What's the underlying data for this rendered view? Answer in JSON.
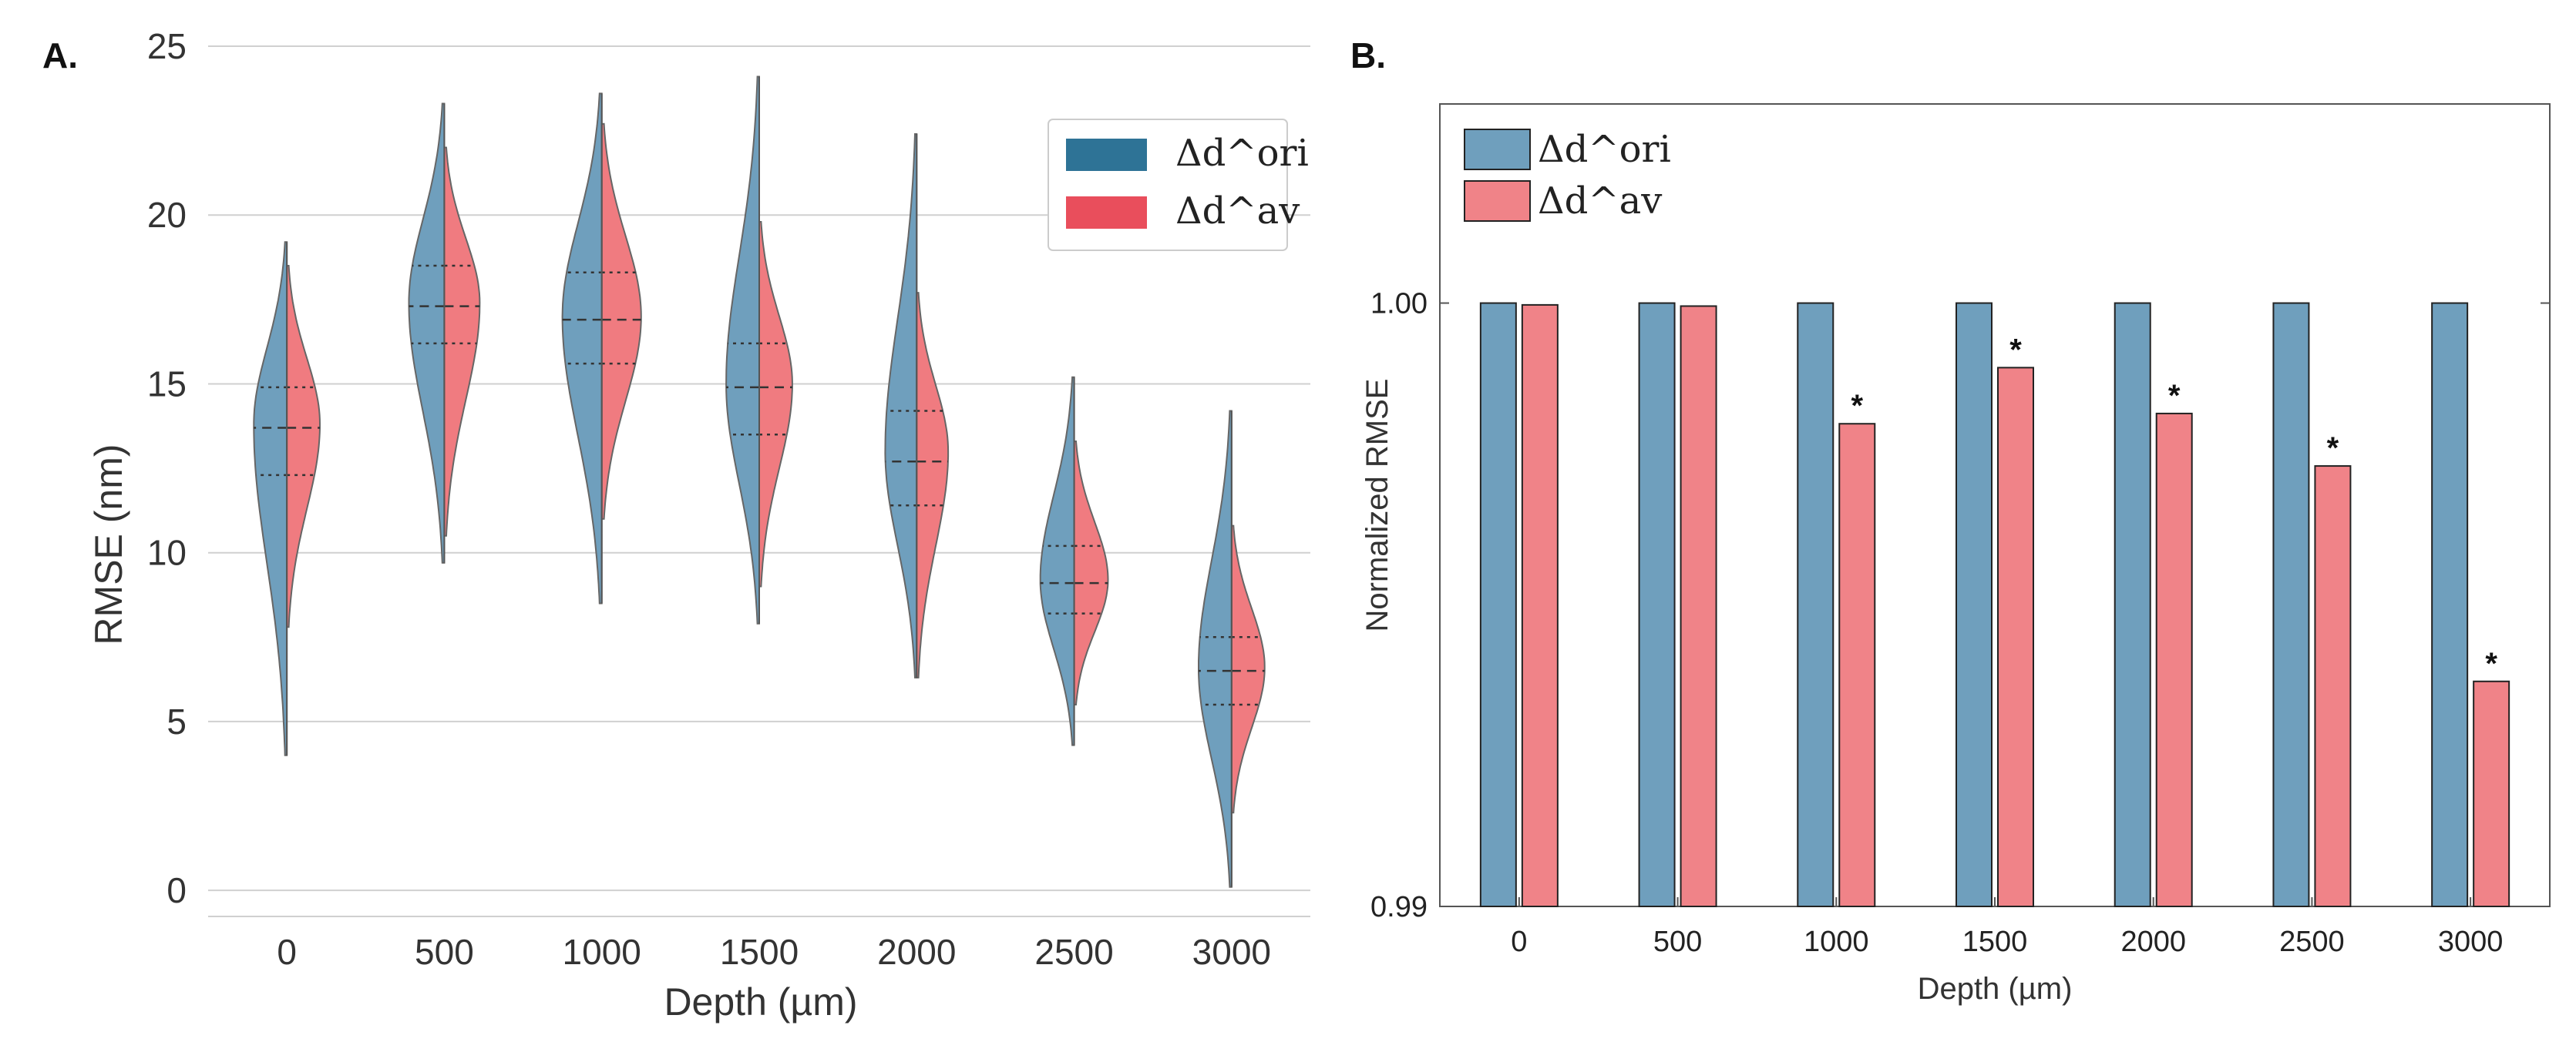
{
  "panels": {
    "a_label": "A.",
    "b_label": "B."
  },
  "chart_data": [
    {
      "type": "violin",
      "panel": "A.",
      "xlabel": "Depth (µm)",
      "ylabel": "RMSE (nm)",
      "categories": [
        "0",
        "500",
        "1000",
        "1500",
        "2000",
        "2500",
        "3000"
      ],
      "ylim": [
        -1,
        25
      ],
      "yticks": [
        "0",
        "5",
        "10",
        "15",
        "20",
        "25"
      ],
      "grid": "horizontal",
      "legend_position": "top-right",
      "legend": [
        "Δd^ori",
        "Δd^av"
      ],
      "colors": {
        "ori": "#6f9fbd",
        "av": "#f07b80",
        "legend_ori": "#2e7396",
        "legend_av": "#e94e5c"
      },
      "series": [
        {
          "name": "Δd^ori",
          "min": [
            4.0,
            9.7,
            8.5,
            7.9,
            6.3,
            4.3,
            0.1
          ],
          "max": [
            19.2,
            23.3,
            23.6,
            24.1,
            22.4,
            15.2,
            14.2
          ],
          "q1": [
            12.3,
            16.2,
            15.6,
            13.5,
            11.4,
            8.2,
            5.5
          ],
          "median": [
            13.7,
            17.3,
            16.9,
            14.9,
            12.7,
            9.1,
            6.5
          ],
          "q3": [
            14.9,
            18.5,
            18.3,
            16.2,
            14.2,
            10.2,
            7.5
          ],
          "mode": [
            13.8,
            17.4,
            17.0,
            15.0,
            13.0,
            9.2,
            6.6
          ],
          "width": [
            0.42,
            0.45,
            0.5,
            0.42,
            0.4,
            0.43,
            0.42
          ]
        },
        {
          "name": "Δd^av",
          "min": [
            7.8,
            10.5,
            11.0,
            9.0,
            6.3,
            5.5,
            2.3
          ],
          "max": [
            18.5,
            22.0,
            22.7,
            19.8,
            17.7,
            13.3,
            10.8
          ],
          "q1": [
            12.3,
            16.2,
            15.6,
            13.5,
            11.4,
            8.2,
            5.5
          ],
          "median": [
            13.7,
            17.3,
            16.9,
            14.9,
            12.7,
            9.1,
            6.5
          ],
          "q3": [
            14.9,
            18.5,
            18.3,
            16.2,
            14.2,
            10.2,
            7.5
          ],
          "mode": [
            13.8,
            17.4,
            17.0,
            15.0,
            13.0,
            9.2,
            6.6
          ],
          "width": [
            0.42,
            0.45,
            0.5,
            0.42,
            0.4,
            0.43,
            0.42
          ]
        }
      ]
    },
    {
      "type": "bar",
      "panel": "B.",
      "xlabel": "Depth (µm)",
      "ylabel": "Normalized RMSE",
      "categories": [
        "0",
        "500",
        "1000",
        "1500",
        "2000",
        "2500",
        "3000"
      ],
      "ylim": [
        0.99,
        1.0033
      ],
      "yticks": [
        "0.99",
        "1.00"
      ],
      "legend_position": "top-left",
      "legend": [
        "Δd^ori",
        "Δd^av"
      ],
      "colors": {
        "ori": "#6f9fbd",
        "av": "#f08388"
      },
      "series": [
        {
          "name": "Δd^ori",
          "values": [
            1.0,
            1.0,
            1.0,
            1.0,
            1.0,
            1.0,
            1.0
          ]
        },
        {
          "name": "Δd^av",
          "values": [
            0.99997,
            0.99995,
            0.998,
            0.99893,
            0.99817,
            0.9973,
            0.99373
          ]
        }
      ],
      "significance_mark": "*",
      "significant": [
        false,
        false,
        true,
        true,
        true,
        true,
        true
      ]
    }
  ]
}
